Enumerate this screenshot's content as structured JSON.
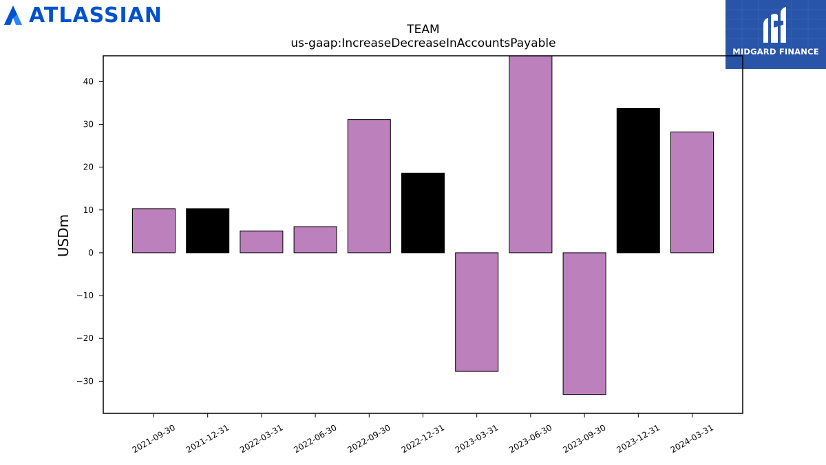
{
  "logos": {
    "left_brand": "ATLASSIAN",
    "right_brand": "MIDGARD FINANCE"
  },
  "colors": {
    "atlassian_blue": "#0052CC",
    "midgard_bg": "#2855A8",
    "bar_purple": "#BC80BD",
    "bar_black": "#000000"
  },
  "chart_data": {
    "type": "bar",
    "title": "TEAM",
    "subtitle": "us-gaap:IncreaseDecreaseInAccountsPayable",
    "xlabel": "",
    "ylabel": "USDm",
    "ylim": [
      -37.5,
      46
    ],
    "yticks": [
      -30,
      -20,
      -10,
      0,
      10,
      20,
      30,
      40
    ],
    "grid": false,
    "categories": [
      "2021-09-30",
      "2021-12-31",
      "2022-03-31",
      "2022-06-30",
      "2022-09-30",
      "2022-12-31",
      "2023-03-31",
      "2023-06-30",
      "2023-09-30",
      "2023-12-31",
      "2024-03-31"
    ],
    "values": [
      10.3,
      10.3,
      5.1,
      6.1,
      31.1,
      18.6,
      -27.7,
      46.0,
      -33.1,
      33.7,
      28.2
    ],
    "bar_colors": [
      "#BC80BD",
      "#000000",
      "#BC80BD",
      "#BC80BD",
      "#BC80BD",
      "#000000",
      "#BC80BD",
      "#BC80BD",
      "#BC80BD",
      "#000000",
      "#BC80BD"
    ]
  }
}
